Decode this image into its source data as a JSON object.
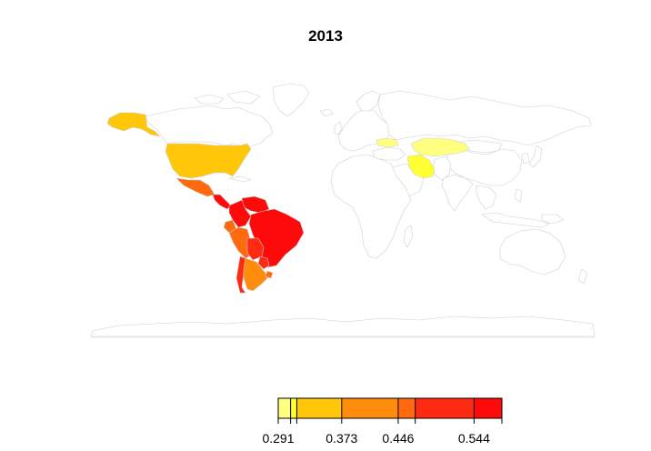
{
  "title": "2013",
  "colors": {
    "no_data": "#ffffff",
    "border": "#cfcfcf",
    "bin1": "#ffff80",
    "bin2": "#ffff33",
    "bin3": "#ffc60a",
    "bin4": "#ff8c0d",
    "bin5": "#ff6a0f",
    "bin6": "#ff2a12",
    "bin7": "#ff0a0a"
  },
  "legend": {
    "tick_labels": [
      "0.291",
      "0.373",
      "0.446",
      "0.544"
    ],
    "min": 0.291,
    "max": 0.58,
    "bins": [
      {
        "from": 0.291,
        "to": 0.307,
        "color": "#ffff80"
      },
      {
        "from": 0.307,
        "to": 0.315,
        "color": "#ffff33"
      },
      {
        "from": 0.315,
        "to": 0.373,
        "color": "#ffc60a"
      },
      {
        "from": 0.373,
        "to": 0.446,
        "color": "#ff8c0d"
      },
      {
        "from": 0.446,
        "to": 0.468,
        "color": "#ff6a0f"
      },
      {
        "from": 0.468,
        "to": 0.544,
        "color": "#ff2a12"
      },
      {
        "from": 0.544,
        "to": 0.58,
        "color": "#ff0a0a"
      }
    ],
    "ticks": [
      0.291,
      0.307,
      0.315,
      0.373,
      0.446,
      0.468,
      0.544,
      0.58
    ]
  },
  "countries": [
    {
      "name": "alaska",
      "bin": 3
    },
    {
      "name": "united-states",
      "bin": 3
    },
    {
      "name": "mexico",
      "bin": 5
    },
    {
      "name": "central-america",
      "bin": 7
    },
    {
      "name": "colombia",
      "bin": 7
    },
    {
      "name": "venezuela",
      "bin": 7
    },
    {
      "name": "ecuador",
      "bin": 5
    },
    {
      "name": "peru",
      "bin": 5
    },
    {
      "name": "brazil",
      "bin": 7
    },
    {
      "name": "bolivia",
      "bin": 6
    },
    {
      "name": "paraguay",
      "bin": 6
    },
    {
      "name": "argentina",
      "bin": 4
    },
    {
      "name": "chile",
      "bin": 6
    },
    {
      "name": "uruguay",
      "bin": 5
    },
    {
      "name": "kazakhstan",
      "bin": 1
    },
    {
      "name": "georgia-armenia",
      "bin": 1
    },
    {
      "name": "iran",
      "bin": 2
    }
  ]
}
